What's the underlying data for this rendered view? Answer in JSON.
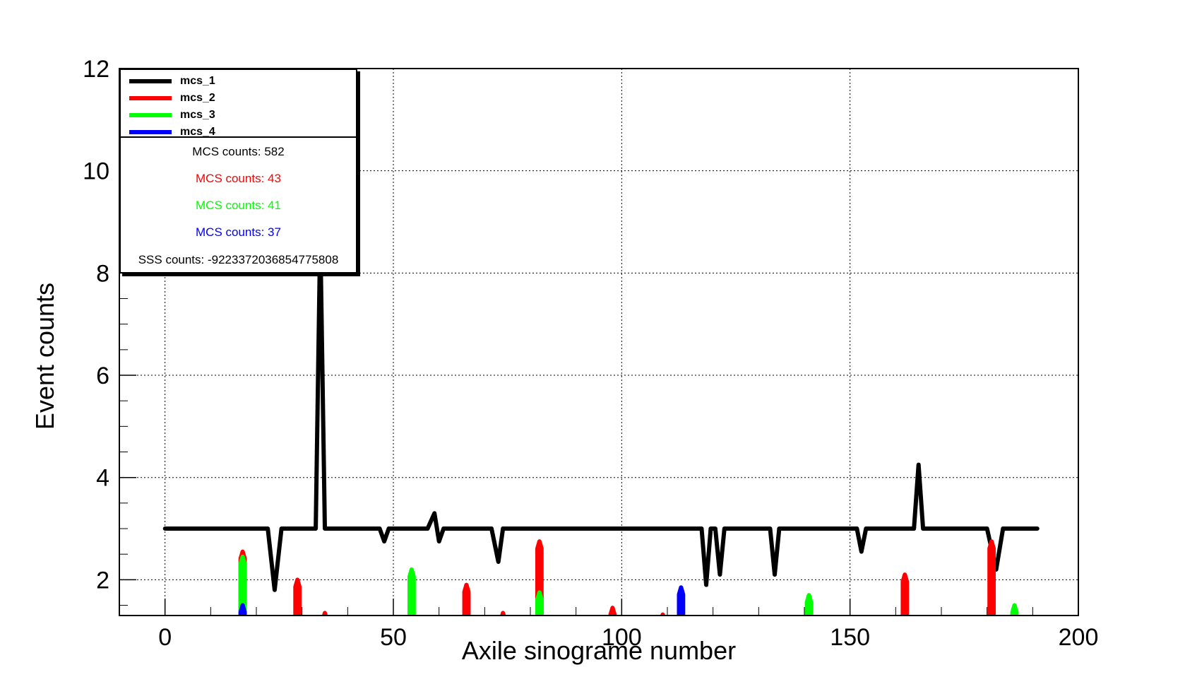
{
  "chart_data": {
    "type": "line",
    "xlabel": "Axile sinograme number",
    "ylabel": "Event counts",
    "xlim": [
      -10,
      200
    ],
    "ylim": [
      1.3,
      12
    ],
    "x_ticks": [
      "0",
      "50",
      "100",
      "150",
      "200"
    ],
    "y_ticks": [
      "2",
      "4",
      "6",
      "8",
      "10",
      "12"
    ],
    "grid": true,
    "legend_position": "top-left",
    "series": [
      {
        "name": "mcs_1",
        "color": "#000000",
        "x": [
          0,
          22.5,
          24,
          25.5,
          33,
          34,
          35,
          47,
          48,
          49,
          57.5,
          59,
          60,
          61,
          71.5,
          73,
          74,
          117.5,
          118.5,
          119.5,
          120.5,
          121.5,
          122.5,
          132.5,
          133.5,
          134.5,
          151.5,
          152.5,
          153.5,
          164,
          165,
          166,
          180,
          182,
          183.5,
          191
        ],
        "y": [
          3,
          3,
          1.8,
          3,
          3,
          8.8,
          3,
          3,
          2.75,
          3,
          3,
          3.3,
          2.75,
          3,
          3,
          2.35,
          3,
          3,
          1.9,
          3,
          3,
          2.1,
          3,
          3,
          2.1,
          3,
          3,
          2.55,
          3,
          3,
          4.25,
          3,
          3,
          2.2,
          3,
          3
        ]
      },
      {
        "name": "mcs_2",
        "color": "#ff0000",
        "x": [
          17,
          29,
          35,
          66,
          74,
          82,
          98,
          109,
          162,
          181
        ],
        "y": [
          2.55,
          2.0,
          1.35,
          1.9,
          1.35,
          2.75,
          1.45,
          1.32,
          2.1,
          2.75
        ]
      },
      {
        "name": "mcs_3",
        "color": "#00ff00",
        "x": [
          17,
          54,
          82,
          141,
          186
        ],
        "y": [
          2.45,
          2.2,
          1.75,
          1.7,
          1.5
        ]
      },
      {
        "name": "mcs_4",
        "color": "#0000ff",
        "x": [
          17,
          113
        ],
        "y": [
          1.5,
          1.85
        ]
      }
    ],
    "annotations": [
      {
        "text": "MCS counts: 582",
        "color": "#000000"
      },
      {
        "text": "MCS counts: 43",
        "color": "#ff0000"
      },
      {
        "text": "MCS counts: 41",
        "color": "#00ff00"
      },
      {
        "text": "MCS counts: 37",
        "color": "#0000ff"
      },
      {
        "text": "SSS counts: -9223372036854775808",
        "color": "#000000"
      }
    ]
  }
}
